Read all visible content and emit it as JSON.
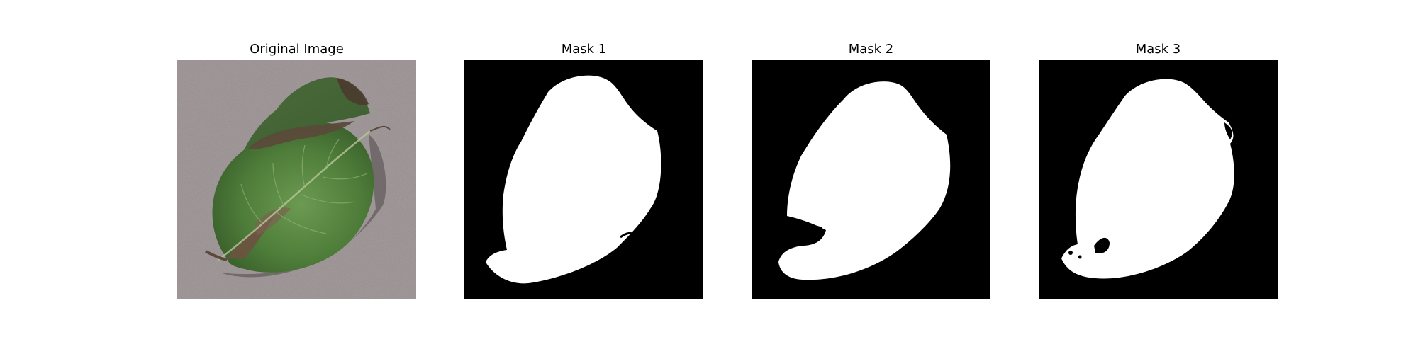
{
  "panels": [
    {
      "title": "Original Image",
      "icon": "potato-leaf-photo"
    },
    {
      "title": "Mask 1",
      "icon": "leaf-mask"
    },
    {
      "title": "Mask 2",
      "icon": "leaf-mask"
    },
    {
      "title": "Mask 3",
      "icon": "leaf-mask"
    }
  ],
  "colors": {
    "background": "#ffffff",
    "mask_bg": "#000000",
    "mask_fg": "#ffffff",
    "photo_bg": "#a39b9c",
    "leaf_green": "#4f7e3a",
    "blight_brown": "#5b4a3a"
  }
}
